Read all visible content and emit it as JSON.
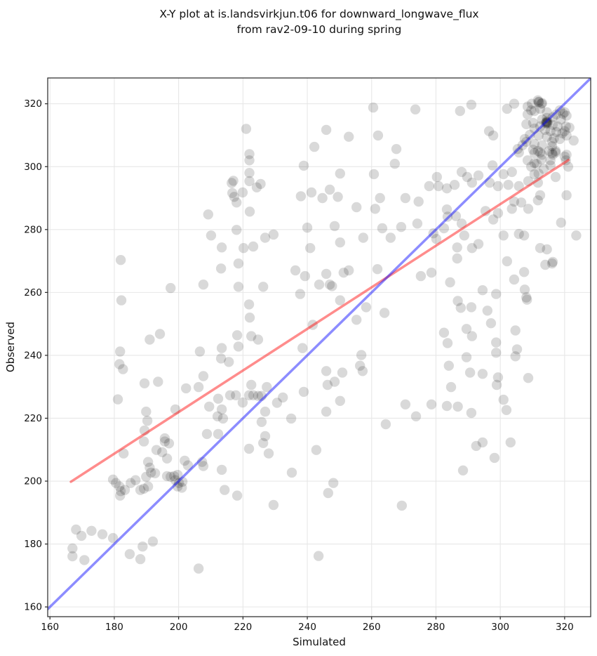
{
  "figure": {
    "title_line1": "X-Y plot at is.landsvirkjun.t06 for downward_longwave_flux",
    "title_line2": "from rav2-09-10 during spring",
    "xlabel": "Simulated",
    "ylabel": "Observed"
  },
  "chart_data": {
    "type": "scatter",
    "title": "X-Y plot at is.landsvirkjun.t06 for downward_longwave_flux from rav2-09-10 during spring",
    "xlabel": "Simulated",
    "ylabel": "Observed",
    "xlim": [
      159.3,
      328.1
    ],
    "ylim": [
      156.9,
      328.2
    ],
    "xticks": [
      160,
      180,
      200,
      220,
      240,
      260,
      280,
      300,
      320
    ],
    "yticks": [
      160,
      180,
      200,
      220,
      240,
      260,
      280,
      300,
      320
    ],
    "grid": true,
    "legend": "none",
    "style": {
      "grid_color": "#e7e7e7",
      "spine_color": "#262626",
      "tick_color": "#262626",
      "text_color": "#111111",
      "background": "#ffffff"
    },
    "marker": {
      "shape": "circle",
      "color": "#000000",
      "opacity": 0.15,
      "radius_px": 7.2
    },
    "lines": [
      {
        "name": "regression-line",
        "color": "#ff0000",
        "opacity": 0.45,
        "width": 3.5,
        "x1": 166.5,
        "y1": 199.8,
        "x2": 321.2,
        "y2": 302.1
      },
      {
        "name": "identity-line",
        "color": "#0000ff",
        "opacity": 0.45,
        "width": 3.5,
        "x1": 159.3,
        "y1": 159.3,
        "x2": 328.1,
        "y2": 328.1
      }
    ],
    "points": [
      [
        221,
        312
      ],
      [
        222,
        304
      ],
      [
        222,
        302
      ],
      [
        222,
        298
      ],
      [
        217,
        295.5
      ],
      [
        216.5,
        294.8
      ],
      [
        222,
        295.4
      ],
      [
        225.5,
        294.5
      ],
      [
        224.3,
        293.4
      ],
      [
        216.7,
        291.6
      ],
      [
        219.9,
        291.8
      ],
      [
        217.3,
        290.4
      ],
      [
        218,
        288.6
      ],
      [
        238,
        290.6
      ],
      [
        241.3,
        291.8
      ],
      [
        242.2,
        306.3
      ],
      [
        238.9,
        300.3
      ],
      [
        222.1,
        285.7
      ],
      [
        209.2,
        284.8
      ],
      [
        210.1,
        278.1
      ],
      [
        218,
        279.9
      ],
      [
        226.9,
        277.4
      ],
      [
        229.5,
        278.4
      ],
      [
        213.4,
        274.3
      ],
      [
        220.2,
        274.1
      ],
      [
        223.2,
        274.6
      ],
      [
        240,
        280.6
      ],
      [
        240.9,
        274.1
      ],
      [
        245.9,
        311.7
      ],
      [
        252.9,
        309.5
      ],
      [
        262,
        309.9
      ],
      [
        260.5,
        318.8
      ],
      [
        273.6,
        318.2
      ],
      [
        287.5,
        317.7
      ],
      [
        291,
        319.7
      ],
      [
        267.7,
        305.6
      ],
      [
        267.2,
        300.9
      ],
      [
        250.2,
        297.8
      ],
      [
        247,
        292.7
      ],
      [
        244.7,
        290
      ],
      [
        249.5,
        290.4
      ],
      [
        260.7,
        297.6
      ],
      [
        261.1,
        286.6
      ],
      [
        270.5,
        290
      ],
      [
        274.6,
        288.9
      ],
      [
        277.9,
        293.8
      ],
      [
        280.8,
        293.8
      ],
      [
        283.4,
        293.1
      ],
      [
        285.8,
        294.2
      ],
      [
        280.3,
        296.7
      ],
      [
        288,
        298.3
      ],
      [
        289.7,
        296.7
      ],
      [
        296.5,
        311.3
      ],
      [
        297.8,
        309.9
      ],
      [
        302.1,
        318.4
      ],
      [
        304.3,
        320
      ],
      [
        307.6,
        308.8
      ],
      [
        305.4,
        305.6
      ],
      [
        309.6,
        317.9
      ],
      [
        311.7,
        321.1
      ],
      [
        312.8,
        320
      ],
      [
        310.6,
        304.3
      ],
      [
        311.7,
        305
      ],
      [
        308.5,
        302
      ],
      [
        309.6,
        300
      ],
      [
        311.3,
        300.9
      ],
      [
        313,
        303.8
      ],
      [
        316.1,
        304.3
      ],
      [
        317.2,
        305
      ],
      [
        320.6,
        303.8
      ],
      [
        322.8,
        308.3
      ],
      [
        320.4,
        302
      ],
      [
        321.1,
        300
      ],
      [
        310.6,
        297.6
      ],
      [
        311.9,
        297.8
      ],
      [
        308.7,
        295.4
      ],
      [
        311.7,
        294.9
      ],
      [
        305.8,
        293.8
      ],
      [
        303.6,
        298.3
      ],
      [
        301,
        297.6
      ],
      [
        302.5,
        294.2
      ],
      [
        299.3,
        293.8
      ],
      [
        296.7,
        294.9
      ],
      [
        317.2,
        296.7
      ],
      [
        297.6,
        300.4
      ],
      [
        293.2,
        297.2
      ],
      [
        291.2,
        294.9
      ],
      [
        304.3,
        288.9
      ],
      [
        306.5,
        288.6
      ],
      [
        303.6,
        286.6
      ],
      [
        308.7,
        286.6
      ],
      [
        311.7,
        289.3
      ],
      [
        320.6,
        290.9
      ],
      [
        318.9,
        282.2
      ],
      [
        299.3,
        285.2
      ],
      [
        297.8,
        283.2
      ],
      [
        295.4,
        285.9
      ],
      [
        286.2,
        284.3
      ],
      [
        283.6,
        284.1
      ],
      [
        283.4,
        286.4
      ],
      [
        288,
        281.9
      ],
      [
        288.8,
        278.1
      ],
      [
        293.2,
        275.4
      ],
      [
        291.2,
        274.1
      ],
      [
        286.6,
        274.3
      ],
      [
        279.2,
        278.8
      ],
      [
        280.1,
        277
      ],
      [
        282.5,
        280.4
      ],
      [
        301,
        278.1
      ],
      [
        305.8,
        278.6
      ],
      [
        307.4,
        278.1
      ],
      [
        323.6,
        278.1
      ],
      [
        274.2,
        281.9
      ],
      [
        269.2,
        280.8
      ],
      [
        265.9,
        277.4
      ],
      [
        263.3,
        280.4
      ],
      [
        262.6,
        290
      ],
      [
        255.3,
        287.1
      ],
      [
        248.5,
        281.1
      ],
      [
        250.2,
        275.9
      ],
      [
        257.4,
        277.4
      ],
      [
        182,
        270.3
      ],
      [
        213.2,
        267.6
      ],
      [
        218.6,
        269.2
      ],
      [
        236.3,
        267
      ],
      [
        239.3,
        265.2
      ],
      [
        243.7,
        262.5
      ],
      [
        197.5,
        261.4
      ],
      [
        207.7,
        262.5
      ],
      [
        218.6,
        261.8
      ],
      [
        226.3,
        261.8
      ],
      [
        237.8,
        259.5
      ],
      [
        182.2,
        257.5
      ],
      [
        221.9,
        256.2
      ],
      [
        222.1,
        252
      ],
      [
        194.2,
        246.8
      ],
      [
        191,
        245
      ],
      [
        241.7,
        249.7
      ],
      [
        218.2,
        246.4
      ],
      [
        222.6,
        246.1
      ],
      [
        224.7,
        245
      ],
      [
        218.6,
        242.8
      ],
      [
        206.6,
        241.2
      ],
      [
        213.4,
        242.3
      ],
      [
        213.2,
        239
      ],
      [
        215.6,
        237.9
      ],
      [
        181.8,
        241.2
      ],
      [
        181.6,
        237.2
      ],
      [
        182.7,
        235.6
      ],
      [
        189.4,
        231.1
      ],
      [
        193.6,
        231.6
      ],
      [
        202.3,
        229.5
      ],
      [
        206.2,
        229.9
      ],
      [
        207.7,
        233.4
      ],
      [
        212.3,
        226.2
      ],
      [
        216,
        227.3
      ],
      [
        217.8,
        227.3
      ],
      [
        219.9,
        225
      ],
      [
        221.9,
        227.3
      ],
      [
        223.2,
        227.3
      ],
      [
        224.7,
        227.1
      ],
      [
        225.8,
        227.1
      ],
      [
        227.4,
        229.9
      ],
      [
        222.6,
        230.6
      ],
      [
        181.1,
        226
      ],
      [
        209.5,
        223.7
      ],
      [
        213.4,
        222.8
      ],
      [
        213.8,
        219.9
      ],
      [
        212.1,
        220.6
      ],
      [
        230.6,
        224.9
      ],
      [
        232.4,
        226.6
      ],
      [
        226.9,
        222.1
      ],
      [
        225.8,
        218.8
      ],
      [
        235,
        219.9
      ],
      [
        238.9,
        228.4
      ],
      [
        238.5,
        242.3
      ],
      [
        199,
        222.8
      ],
      [
        189.9,
        222.1
      ],
      [
        190.3,
        219.2
      ],
      [
        189.4,
        216.1
      ],
      [
        195.7,
        213.6
      ],
      [
        208.8,
        215
      ],
      [
        212.3,
        215
      ],
      [
        226.9,
        214.3
      ],
      [
        245.9,
        265.9
      ],
      [
        247,
        262.5
      ],
      [
        247.7,
        262
      ],
      [
        251.3,
        266.3
      ],
      [
        252.9,
        267
      ],
      [
        250.2,
        257.5
      ],
      [
        255.3,
        251.3
      ],
      [
        258.3,
        255.3
      ],
      [
        264,
        253.5
      ],
      [
        261.8,
        267.4
      ],
      [
        275.3,
        265.2
      ],
      [
        278.6,
        266.3
      ],
      [
        286.6,
        270.8
      ],
      [
        284.4,
        263.2
      ],
      [
        286.8,
        257.3
      ],
      [
        287.7,
        255.1
      ],
      [
        291,
        255.3
      ],
      [
        294.5,
        260.7
      ],
      [
        298.7,
        259.5
      ],
      [
        296,
        254.2
      ],
      [
        297.1,
        250.2
      ],
      [
        302.1,
        269.9
      ],
      [
        304.3,
        264.1
      ],
      [
        307.4,
        266.5
      ],
      [
        307.6,
        260.9
      ],
      [
        308.1,
        258.4
      ],
      [
        308.3,
        257.7
      ],
      [
        316.1,
        269.2
      ],
      [
        289.5,
        248.4
      ],
      [
        291.2,
        246.1
      ],
      [
        304.7,
        247.9
      ],
      [
        305.2,
        241.9
      ],
      [
        298.7,
        244.1
      ],
      [
        298.7,
        240.8
      ],
      [
        282.5,
        247.2
      ],
      [
        283.6,
        243.9
      ],
      [
        289.5,
        239.4
      ],
      [
        284,
        236.7
      ],
      [
        290.6,
        234.5
      ],
      [
        294.5,
        234.1
      ],
      [
        299.3,
        233
      ],
      [
        298.9,
        230.6
      ],
      [
        284.7,
        229.9
      ],
      [
        278.6,
        224.4
      ],
      [
        283.4,
        223.9
      ],
      [
        286.8,
        223.7
      ],
      [
        291,
        221.7
      ],
      [
        301,
        225.9
      ],
      [
        301.9,
        222.6
      ],
      [
        308.7,
        232.8
      ],
      [
        304.7,
        239.7
      ],
      [
        270.5,
        224.4
      ],
      [
        273.8,
        220.6
      ],
      [
        264.4,
        218.1
      ],
      [
        245.9,
        235
      ],
      [
        246.3,
        230.6
      ],
      [
        248.5,
        231.6
      ],
      [
        250.9,
        234.5
      ],
      [
        250.2,
        225.5
      ],
      [
        245.9,
        222.1
      ],
      [
        256.8,
        240.1
      ],
      [
        256.4,
        236.7
      ],
      [
        257.2,
        235
      ],
      [
        189.2,
        212.6
      ],
      [
        182.9,
        208.8
      ],
      [
        190.5,
        206.1
      ],
      [
        195.7,
        212.6
      ],
      [
        197,
        212
      ],
      [
        193.1,
        209.9
      ],
      [
        194.9,
        209.2
      ],
      [
        196.4,
        207.2
      ],
      [
        191,
        204.3
      ],
      [
        191.4,
        202.7
      ],
      [
        192.7,
        202.5
      ],
      [
        189.9,
        201.4
      ],
      [
        190.5,
        198.3
      ],
      [
        196.4,
        201.6
      ],
      [
        197.5,
        201.4
      ],
      [
        198.6,
        201.6
      ],
      [
        199.7,
        202
      ],
      [
        199,
        200.3
      ],
      [
        200.1,
        199.4
      ],
      [
        201.2,
        199.8
      ],
      [
        199.7,
        198.3
      ],
      [
        201,
        197.9
      ],
      [
        201.9,
        206.5
      ],
      [
        202.9,
        205
      ],
      [
        207.3,
        206.1
      ],
      [
        207.7,
        204.8
      ],
      [
        179.6,
        200.5
      ],
      [
        180.5,
        199.4
      ],
      [
        181.6,
        198.3
      ],
      [
        181.8,
        195.4
      ],
      [
        182,
        196.8
      ],
      [
        183.3,
        197.2
      ],
      [
        185.1,
        199.4
      ],
      [
        186.6,
        200.3
      ],
      [
        188.1,
        197.2
      ],
      [
        189.2,
        197.6
      ],
      [
        213.4,
        203.6
      ],
      [
        214.3,
        197.2
      ],
      [
        218.2,
        195.4
      ],
      [
        221.9,
        210.3
      ],
      [
        226.3,
        212.1
      ],
      [
        228,
        208.8
      ],
      [
        229.5,
        192.4
      ],
      [
        235.2,
        202.7
      ],
      [
        242.8,
        209.9
      ],
      [
        168.1,
        184.6
      ],
      [
        169.8,
        182.6
      ],
      [
        172.9,
        184.2
      ],
      [
        176.3,
        183.1
      ],
      [
        179.6,
        181.9
      ],
      [
        167,
        178.6
      ],
      [
        167,
        176.1
      ],
      [
        170.7,
        174.9
      ],
      [
        184.8,
        176.8
      ],
      [
        188.1,
        175.2
      ],
      [
        188.8,
        179.2
      ],
      [
        192,
        180.8
      ],
      [
        206.2,
        172.2
      ],
      [
        243.5,
        176.2
      ],
      [
        248.1,
        199.4
      ],
      [
        246.5,
        196.2
      ],
      [
        269.4,
        192.2
      ],
      [
        288.4,
        203.4
      ],
      [
        292.5,
        211.2
      ],
      [
        294.5,
        212.3
      ],
      [
        298.2,
        207.4
      ],
      [
        303.2,
        212.3
      ],
      [
        313,
        320.2
      ],
      [
        312,
        320.5
      ],
      [
        309.8,
        320
      ],
      [
        311.9,
        320.6
      ],
      [
        312.4,
        318.4
      ],
      [
        310.6,
        317.7
      ],
      [
        314.5,
        317.3
      ],
      [
        318.5,
        317.9
      ],
      [
        319.5,
        316.8
      ],
      [
        320.6,
        316.2
      ],
      [
        320,
        317.3
      ],
      [
        317.4,
        316.6
      ],
      [
        316.3,
        315.7
      ],
      [
        318.9,
        315
      ],
      [
        308.5,
        316.6
      ],
      [
        308.5,
        319.1
      ],
      [
        308.1,
        313.5
      ],
      [
        310.2,
        313.9
      ],
      [
        313,
        315
      ],
      [
        314.5,
        315.5
      ],
      [
        316.3,
        313.3
      ],
      [
        317.8,
        312.8
      ],
      [
        320.4,
        312.8
      ],
      [
        321.5,
        312.4
      ],
      [
        312.4,
        312.8
      ],
      [
        310.6,
        312.1
      ],
      [
        313.9,
        311.7
      ],
      [
        315.6,
        311.3
      ],
      [
        317.4,
        311
      ],
      [
        319.3,
        310.6
      ],
      [
        309.2,
        310.1
      ],
      [
        311.9,
        309.9
      ],
      [
        314.5,
        309.5
      ],
      [
        316.7,
        309
      ],
      [
        318.5,
        308.8
      ],
      [
        320.6,
        309.9
      ],
      [
        308.1,
        307.9
      ],
      [
        310.6,
        307.2
      ],
      [
        313,
        306.8
      ],
      [
        316.1,
        306.5
      ],
      [
        310.2,
        305.4
      ],
      [
        312.4,
        304.5
      ],
      [
        315.2,
        305
      ],
      [
        317.2,
        304.5
      ],
      [
        306.9,
        306.8
      ],
      [
        305.8,
        304.5
      ],
      [
        316.1,
        307.9
      ],
      [
        320,
        311.3
      ],
      [
        316.3,
        303.8
      ],
      [
        320,
        303.2
      ],
      [
        315.6,
        300.4
      ],
      [
        313.5,
        299.3
      ],
      [
        312.8,
        302.3
      ],
      [
        315.6,
        302
      ],
      [
        310.6,
        301.1
      ],
      [
        312.4,
        290.9
      ],
      [
        312.4,
        274.1
      ],
      [
        314.5,
        273.7
      ],
      [
        314,
        268.8
      ],
      [
        316.3,
        269.7
      ],
      [
        314.3,
        314.2
      ],
      [
        314.6,
        313.7
      ],
      [
        314.2,
        313.8
      ],
      [
        314.7,
        314.1
      ],
      [
        314.4,
        314
      ],
      [
        314.5,
        314.4
      ]
    ]
  }
}
